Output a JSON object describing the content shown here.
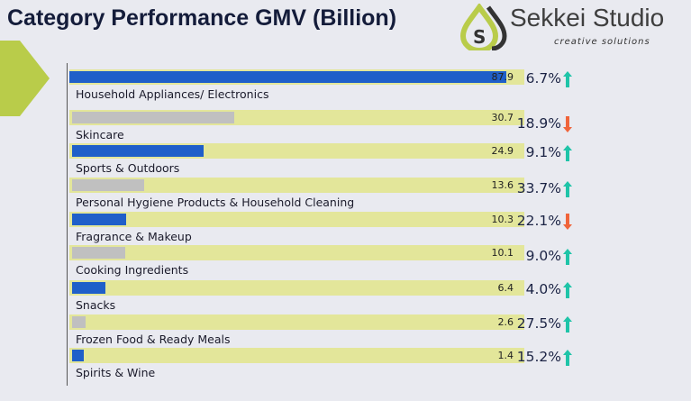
{
  "title": "Category Performance GMV (Billion)",
  "logo": {
    "brand": "Sekkei Studio",
    "tagline": "creative solutions"
  },
  "colors": {
    "highlight": "#1f5fc9",
    "muted": "#c0c0c0",
    "track": "#e3e69a",
    "up": "#1fc4a8",
    "down": "#f0643a"
  },
  "chart_data": {
    "type": "bar",
    "orientation": "horizontal",
    "title": "Category Performance GMV (Billion)",
    "categories": [
      "Household Appliances/ Electronics",
      "Skincare",
      "Sports & Outdoors",
      "Personal Hygiene Products & Household Cleaning",
      "Fragrance & Makeup",
      "Cooking Ingredients",
      "Snacks",
      "Frozen Food & Ready Meals",
      "Spirits & Wine"
    ],
    "values": [
      87.9,
      30.7,
      24.9,
      13.6,
      10.3,
      10.1,
      6.4,
      2.6,
      1.4
    ],
    "value_labels": [
      "87.9",
      "30.7",
      "24.9",
      "13.6",
      "10.3",
      "10.1",
      "6.4",
      "2.6",
      "1.4"
    ],
    "bar_colors": [
      "blue",
      "gray",
      "blue",
      "gray",
      "blue",
      "gray",
      "blue",
      "gray",
      "blue"
    ],
    "changes": [
      "6.7%",
      "18.9%",
      "9.1%",
      "33.7%",
      "22.1%",
      "9.0%",
      "4.0%",
      "27.5%",
      "15.2%"
    ],
    "change_direction": [
      "up",
      "down",
      "up",
      "up",
      "down",
      "up",
      "up",
      "up",
      "up"
    ],
    "xlim": [
      0,
      95
    ]
  }
}
